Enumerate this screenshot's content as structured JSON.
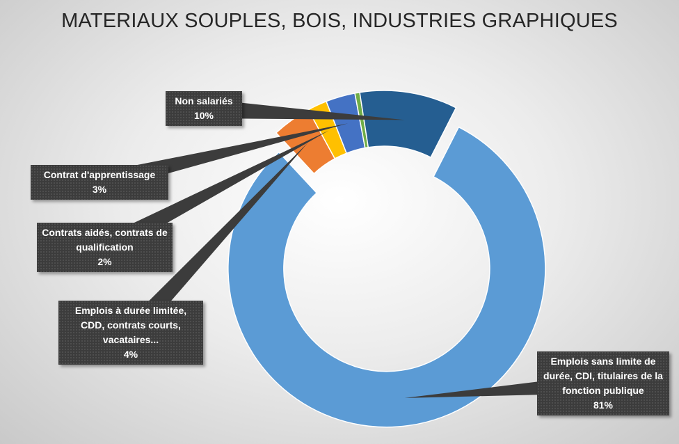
{
  "chart_data": {
    "type": "pie",
    "title": "MATERIAUX SOUPLES, BOIS, INDUSTRIES GRAPHIQUES",
    "donut": true,
    "slices": [
      {
        "label": "Emplois sans limite de durée, CDI, titulaires de la fonction publique",
        "value_label": "81%",
        "value": 81,
        "color": "#5b9bd5"
      },
      {
        "label": "Emplois à durée limitée, CDD, contrats courts, vacataires...",
        "value_label": "4%",
        "value": 4,
        "color": "#ed7d31"
      },
      {
        "label": "Contrats aidés, contrats de qualification",
        "value_label": "2%",
        "value": 2,
        "color": "#ffc000"
      },
      {
        "label": "Contrat d'apprentissage",
        "value_label": "3%",
        "value": 3,
        "color": "#4472c4"
      },
      {
        "label": "",
        "value_label": "",
        "value": 0.5,
        "color": "#70ad47"
      },
      {
        "label": "Non salariés",
        "value_label": "10%",
        "value": 10,
        "color": "#255e91"
      }
    ]
  }
}
